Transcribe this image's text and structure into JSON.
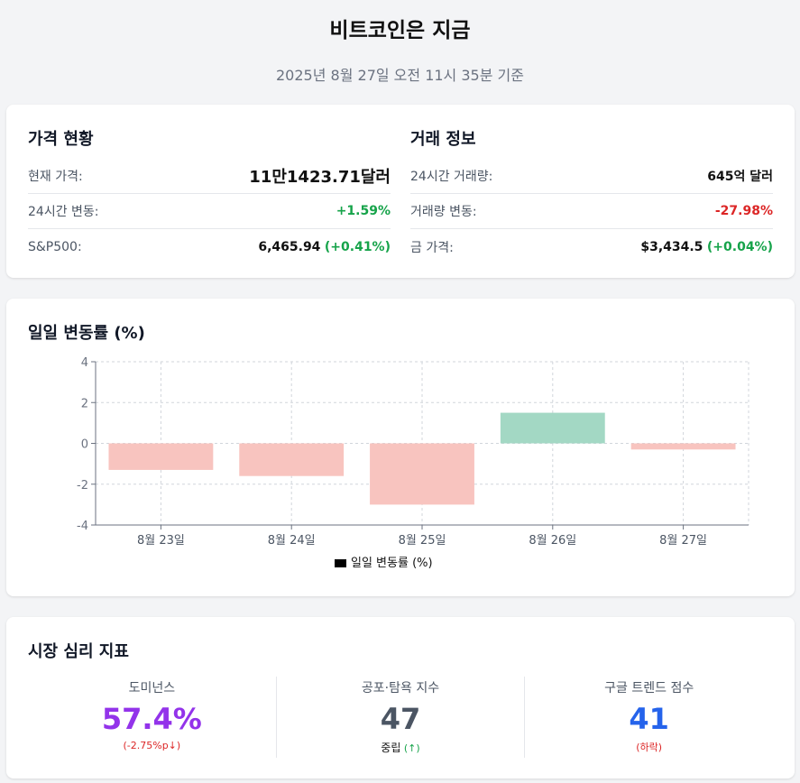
{
  "header": {
    "title": "비트코인은 지금",
    "subtitle": "2025년 8월 27일 오전 11시 35분 기준"
  },
  "price_status": {
    "title": "가격 현황",
    "rows": [
      {
        "label": "현재 가격:",
        "value": "11만1423.71달러"
      },
      {
        "label": "24시간 변동:",
        "value": "+1.59%"
      },
      {
        "label": "S&P500:",
        "value": "6,465.94",
        "change": "(+0.41%)"
      }
    ]
  },
  "trade_info": {
    "title": "거래 정보",
    "rows": [
      {
        "label": "24시간 거래량:",
        "value": "645억 달러"
      },
      {
        "label": "거래량 변동:",
        "value": "-27.98%"
      },
      {
        "label": "금 가격:",
        "value": "$3,434.5",
        "change": "(+0.04%)"
      }
    ]
  },
  "chart_section": {
    "title": "일일 변동률 (%)"
  },
  "chart_data": {
    "type": "bar",
    "categories": [
      "8월 23일",
      "8월 24일",
      "8월 25일",
      "8월 26일",
      "8월 27일"
    ],
    "series": [
      {
        "name": "일일 변동률 (%)",
        "values": [
          -1.3,
          -1.6,
          -3.0,
          1.5,
          -0.3
        ]
      }
    ],
    "ylim": [
      -4,
      4
    ],
    "yticks": [
      4,
      2,
      0,
      -2,
      -4
    ],
    "grid": true,
    "legend": "bottom",
    "colors": {
      "negative": "#f8c4bf",
      "positive": "#a3d8c4"
    }
  },
  "sentiment": {
    "title": "시장 심리 지표",
    "metrics": [
      {
        "label": "도미넌스",
        "value": "57.4%",
        "sub": "(-2.75%p↓)",
        "color": "#9333ea"
      },
      {
        "label": "공포·탐욕 지수",
        "value": "47",
        "sub": "중립",
        "sub2": "(↑)",
        "color": "#4b5563"
      },
      {
        "label": "구글 트렌드 점수",
        "value": "41",
        "sub": "(하락)",
        "color": "#2563eb"
      }
    ]
  }
}
